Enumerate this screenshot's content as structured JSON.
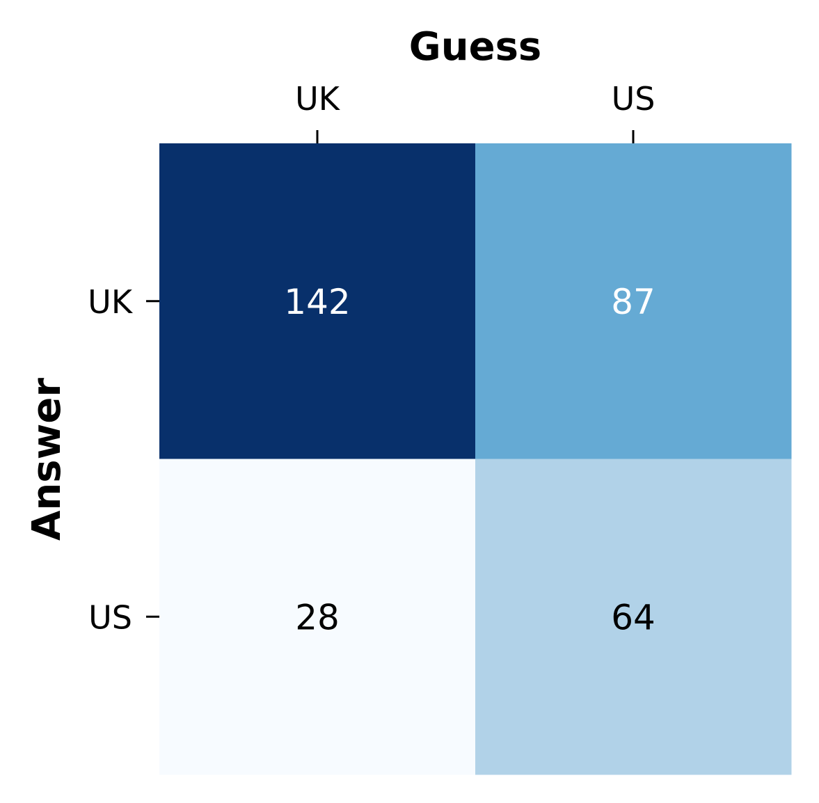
{
  "chart_data": {
    "type": "heatmap",
    "xlabel": "Guess",
    "ylabel": "Answer",
    "x_categories": [
      "UK",
      "US"
    ],
    "y_categories": [
      "UK",
      "US"
    ],
    "values": [
      [
        142,
        87
      ],
      [
        28,
        64
      ]
    ],
    "colormap": "Blues",
    "x_axis_position": "top"
  }
}
